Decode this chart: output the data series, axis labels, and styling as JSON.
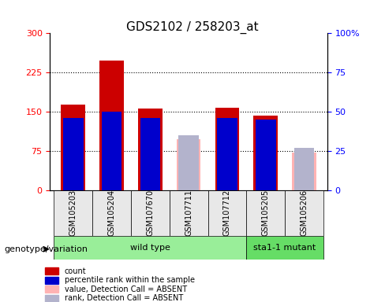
{
  "title": "GDS2102 / 258203_at",
  "samples": [
    "GSM105203",
    "GSM105204",
    "GSM107670",
    "GSM107711",
    "GSM107712",
    "GSM105205",
    "GSM105206"
  ],
  "count_values": [
    163,
    248,
    156,
    null,
    157,
    143,
    null
  ],
  "percentile_rank": [
    46,
    50,
    46,
    null,
    46,
    45,
    null
  ],
  "absent_value": [
    null,
    null,
    null,
    97,
    null,
    null,
    72
  ],
  "absent_rank": [
    null,
    null,
    null,
    35,
    null,
    null,
    27
  ],
  "ylim_left": [
    0,
    300
  ],
  "ylim_right": [
    0,
    100
  ],
  "yticks_left": [
    0,
    75,
    150,
    225,
    300
  ],
  "yticks_right": [
    0,
    25,
    50,
    75,
    100
  ],
  "bar_width": 0.35,
  "count_color": "#cc0000",
  "rank_color": "#0000cc",
  "absent_value_color": "#ffb3b3",
  "absent_rank_color": "#b3b3cc",
  "wild_type_color": "#99ee99",
  "mutant_color": "#66dd66",
  "wild_type_samples": [
    0,
    1,
    2,
    3,
    4
  ],
  "mutant_samples": [
    5,
    6
  ],
  "genotype_label_wild": "wild type",
  "genotype_label_mutant": "sta1-1 mutant",
  "bg_color": "#e8e8e8",
  "legend_items": [
    {
      "label": "count",
      "color": "#cc0000",
      "marker": "s"
    },
    {
      "label": "percentile rank within the sample",
      "color": "#0000cc",
      "marker": "s"
    },
    {
      "label": "value, Detection Call = ABSENT",
      "color": "#ffb3b3",
      "marker": "s"
    },
    {
      "label": "rank, Detection Call = ABSENT",
      "color": "#b3b3cc",
      "marker": "s"
    }
  ]
}
